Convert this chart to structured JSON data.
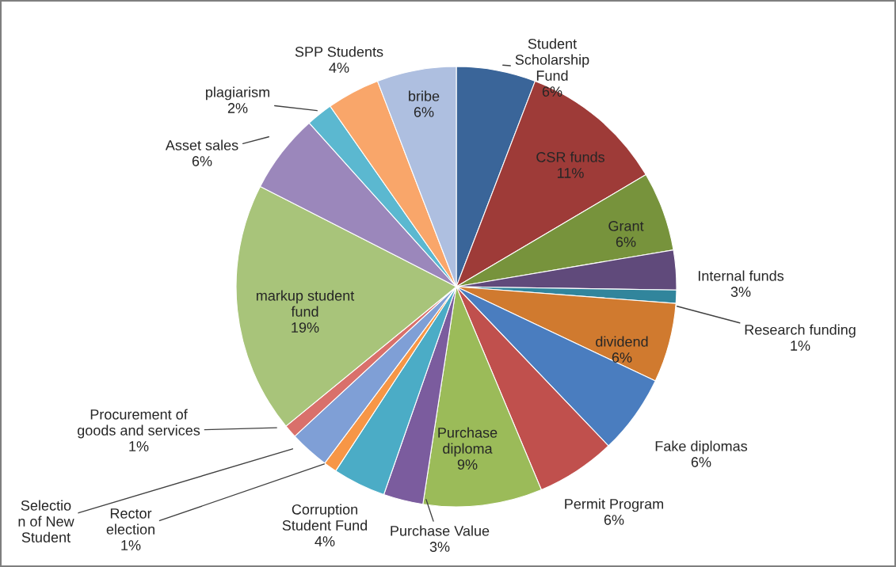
{
  "chart_data": {
    "type": "pie",
    "categories": [
      "Student Scholarship Fund",
      "CSR funds",
      "Grant",
      "Internal funds",
      "Research funding",
      "dividend",
      "Fake diplomas",
      "Permit Program",
      "Purchase diploma",
      "Purchase Value",
      "Corruption Student Fund",
      "Rector election",
      "Selection of New Student",
      "Procurement of goods and services",
      "markup student fund",
      "Asset sales",
      "plagiarism",
      "SPP Students",
      "bribe"
    ],
    "values": [
      6,
      11,
      6,
      3,
      1,
      6,
      6,
      6,
      9,
      3,
      4,
      1,
      3,
      1,
      19,
      6,
      2,
      4,
      6
    ],
    "value_labels": [
      "6%",
      "11%",
      "6%",
      "3%",
      "1%",
      "6%",
      "6%",
      "6%",
      "9%",
      "3%",
      "4%",
      "1%",
      null,
      "1%",
      "19%",
      "6%",
      "2%",
      "4%",
      "6%"
    ],
    "colors": [
      "#3a6599",
      "#9e3b38",
      "#77933c",
      "#604a7b",
      "#31859c",
      "#d07a2f",
      "#4a7dbf",
      "#c0504d",
      "#9bbb59",
      "#7b5c9e",
      "#4bacc6",
      "#f79646",
      "#7f9fd6",
      "#d9706b",
      "#a8c47a",
      "#9b87bb",
      "#5bb8d0",
      "#f9a66a",
      "#aebfe0"
    ],
    "legend": false
  }
}
